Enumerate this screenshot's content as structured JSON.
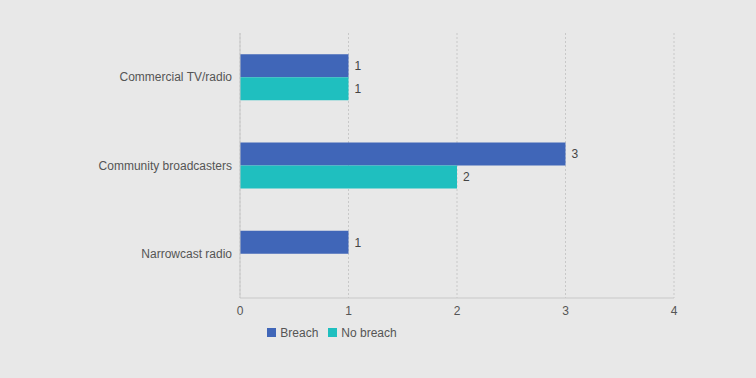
{
  "chart_data": {
    "type": "bar",
    "orientation": "horizontal",
    "categories": [
      "Commercial TV/radio",
      "Community broadcasters",
      "Narrowcast radio"
    ],
    "series": [
      {
        "name": "Breach",
        "color": "#4066b8",
        "values": [
          1,
          3,
          1
        ]
      },
      {
        "name": "No breach",
        "color": "#1fbfbf",
        "values": [
          1,
          2,
          null
        ]
      }
    ],
    "xlim": [
      0,
      4
    ],
    "xticks": [
      0,
      1,
      2,
      3,
      4
    ],
    "grid": true,
    "legend": "bottom",
    "data_labels": true
  }
}
